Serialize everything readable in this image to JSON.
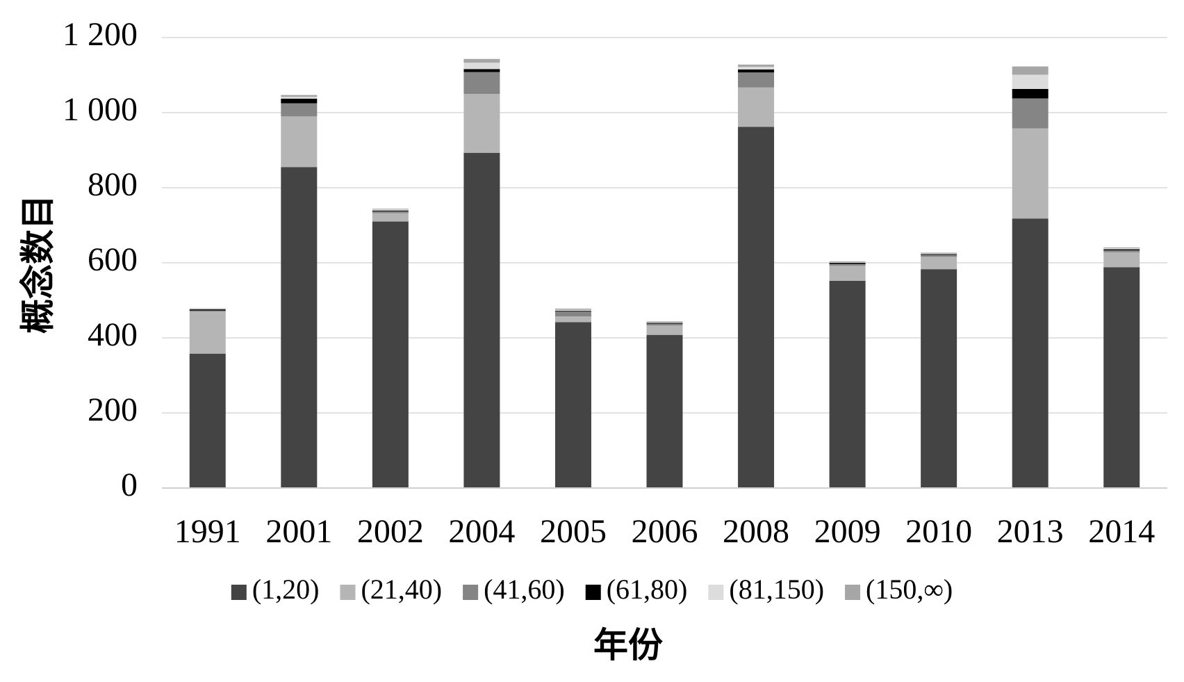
{
  "chart_data": {
    "type": "bar",
    "stacked": true,
    "categories": [
      "1991",
      "2001",
      "2002",
      "2004",
      "2005",
      "2006",
      "2008",
      "2009",
      "2010",
      "2013",
      "2014"
    ],
    "series": [
      {
        "name": "(1,20)",
        "color": "#444444",
        "values": [
          358,
          855,
          710,
          893,
          442,
          408,
          962,
          552,
          583,
          718,
          588
        ]
      },
      {
        "name": "(21,40)",
        "color": "#b5b5b5",
        "values": [
          112,
          135,
          22,
          157,
          15,
          25,
          105,
          40,
          33,
          240,
          40
        ]
      },
      {
        "name": "(41,60)",
        "color": "#858585",
        "values": [
          3,
          35,
          5,
          58,
          13,
          5,
          40,
          5,
          5,
          80,
          5
        ]
      },
      {
        "name": "(61,80)",
        "color": "#000000",
        "values": [
          3,
          12,
          2,
          8,
          2,
          2,
          8,
          3,
          2,
          25,
          3
        ]
      },
      {
        "name": "(81,150)",
        "color": "#dcdcdc",
        "values": [
          2,
          5,
          3,
          17,
          3,
          2,
          7,
          2,
          2,
          38,
          3
        ]
      },
      {
        "name": "(150,∞)",
        "color": "#a6a6a6",
        "values": [
          1,
          5,
          2,
          10,
          3,
          2,
          6,
          2,
          2,
          22,
          2
        ]
      }
    ],
    "ylim": [
      0,
      1200
    ],
    "yticks": [
      0,
      200,
      400,
      600,
      800,
      1000,
      1200
    ],
    "ytick_labels": [
      "0",
      "200",
      "400",
      "600",
      "800",
      "1 000",
      "1 200"
    ],
    "xlabel": "年份",
    "ylabel": "概念数目",
    "grid": true,
    "legend_position": "bottom"
  }
}
